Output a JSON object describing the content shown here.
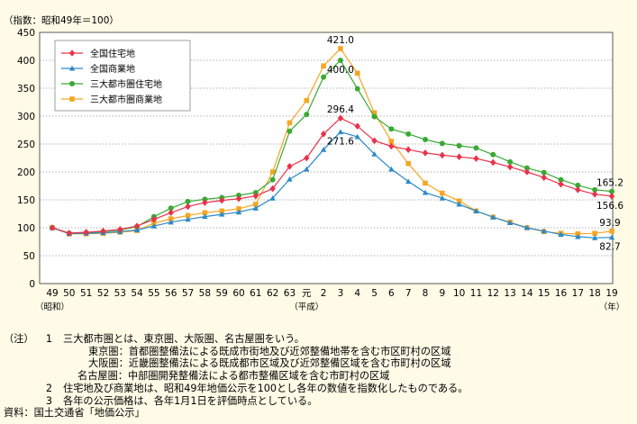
{
  "chart_data": {
    "type": "line",
    "index_note": "（指数：昭和49年＝100）",
    "categories": [
      "49",
      "50",
      "51",
      "52",
      "53",
      "54",
      "55",
      "56",
      "57",
      "58",
      "59",
      "60",
      "61",
      "62",
      "63",
      "元",
      "2",
      "3",
      "4",
      "5",
      "6",
      "7",
      "8",
      "9",
      "10",
      "11",
      "12",
      "13",
      "14",
      "15",
      "16",
      "17",
      "18",
      "19"
    ],
    "era_labels": {
      "showa": "（昭和）",
      "heisei": "（平成）",
      "year_unit": "（年）"
    },
    "ylim": [
      0,
      450
    ],
    "yticks": [
      0,
      50,
      100,
      150,
      200,
      250,
      300,
      350,
      400,
      450
    ],
    "grid": "horizontal dotted",
    "legend_position": "top-left",
    "series": [
      {
        "name": "全国住宅地",
        "color": "#e8334a",
        "marker": "diamond",
        "values": [
          100,
          90.5,
          92,
          94,
          97,
          103,
          115,
          127,
          138,
          145,
          149,
          152,
          157,
          170,
          210,
          225,
          268,
          296.4,
          282,
          256,
          246,
          240,
          234,
          230,
          227,
          224,
          217,
          209,
          200,
          190,
          178,
          168,
          160,
          156.6
        ]
      },
      {
        "name": "全国商業地",
        "color": "#2a8ac8",
        "marker": "triangle",
        "values": [
          100,
          89.5,
          90,
          91,
          93,
          96,
          103,
          110,
          115,
          120,
          124,
          128,
          135,
          153,
          187,
          205,
          240,
          271.6,
          263,
          232,
          205,
          183,
          163,
          153,
          142,
          130,
          119,
          109,
          100,
          94,
          88,
          84,
          82,
          82.7
        ]
      },
      {
        "name": "三大都市圏住宅地",
        "color": "#3aa935",
        "marker": "circle",
        "values": [
          100,
          90,
          91,
          93,
          96,
          102,
          120,
          135,
          147,
          151,
          154,
          158,
          163,
          186,
          273,
          303,
          370,
          400.0,
          349,
          299,
          277,
          268,
          258,
          251,
          247,
          243,
          231,
          218,
          207,
          199,
          186,
          176,
          168,
          165.2
        ]
      },
      {
        "name": "三大都市圏商業地",
        "color": "#f5a623",
        "marker": "square",
        "values": [
          100,
          89,
          89,
          90,
          92,
          95,
          108,
          116,
          122,
          127,
          130,
          134,
          142,
          200,
          288,
          328,
          390,
          421.0,
          377,
          306,
          255,
          215,
          180,
          162,
          148,
          130,
          119,
          110,
          100,
          93,
          90,
          89,
          90,
          93.9
        ]
      }
    ],
    "annotations": [
      {
        "series": 3,
        "index": 17,
        "text": "421.0",
        "pos": "above"
      },
      {
        "series": 2,
        "index": 17,
        "text": "400.0",
        "pos": "below"
      },
      {
        "series": 0,
        "index": 17,
        "text": "296.4",
        "pos": "above"
      },
      {
        "series": 1,
        "index": 17,
        "text": "271.6",
        "pos": "below"
      },
      {
        "series": 2,
        "index": 33,
        "text": "165.2",
        "pos": "above"
      },
      {
        "series": 0,
        "index": 33,
        "text": "156.6",
        "pos": "below"
      },
      {
        "series": 3,
        "index": 33,
        "text": "93.9",
        "pos": "above"
      },
      {
        "series": 1,
        "index": 33,
        "text": "82.7",
        "pos": "below"
      }
    ]
  },
  "notes": {
    "note_tag": "（注）",
    "source_tag": "資料：",
    "items": [
      {
        "num": "1",
        "text": "三大都市圏とは、東京圏、大阪圏、名古屋圏をいう。"
      },
      {
        "num": "",
        "text": "東京圏：首都圏整備法による既成市街地及び近郊整備地帯を含む市区町村の区域"
      },
      {
        "num": "",
        "text": "大阪圏：近畿圏整備法による既成都市区域及び近郊整備区域を含む市町村の区域"
      },
      {
        "num": "",
        "text": "名古屋圏：中部圏開発整備法による都市整備区域を含む市町村の区域"
      },
      {
        "num": "2",
        "text": "住宅地及び商業地は、昭和49年地価公示を100とし各年の数値を指数化したものである。"
      },
      {
        "num": "3",
        "text": "各年の公示価格は、各年1月1日を評価時点としている。"
      }
    ],
    "source": "国土交通省「地価公示」"
  }
}
